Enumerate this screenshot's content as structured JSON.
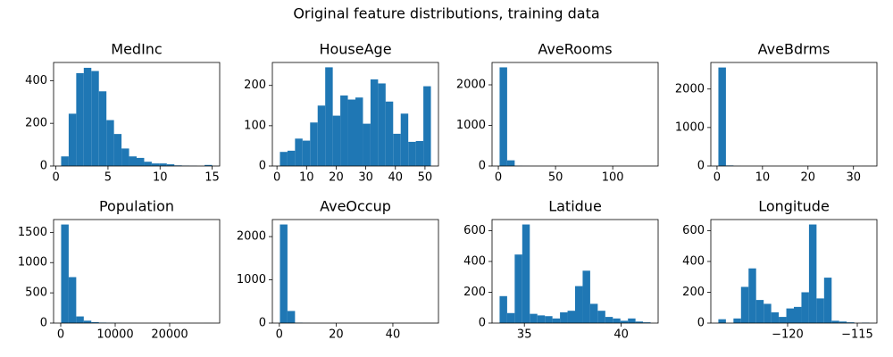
{
  "title": "Original feature distributions, training data",
  "chart_data": [
    {
      "type": "histogram",
      "title": "MedInc",
      "color": "#1f77b4",
      "bins": [
        0.5,
        1.225,
        1.95,
        2.675,
        3.4,
        4.125,
        4.85,
        5.575,
        6.3,
        7.025,
        7.75,
        8.475,
        9.2,
        9.925,
        10.65,
        11.375,
        12.1,
        12.825,
        13.55,
        14.275,
        15.0
      ],
      "values": [
        45,
        245,
        435,
        460,
        445,
        350,
        215,
        150,
        82,
        45,
        38,
        20,
        12,
        12,
        8,
        3,
        2,
        1,
        0,
        5
      ],
      "xlim": [
        -0.225,
        15.725
      ],
      "xticks": [
        0,
        5,
        10,
        15
      ],
      "ylim": [
        0,
        485
      ],
      "yticks": [
        0,
        200,
        400
      ]
    },
    {
      "type": "histogram",
      "title": "HouseAge",
      "color": "#1f77b4",
      "bins": [
        1,
        3.55,
        6.1,
        8.65,
        11.2,
        13.75,
        16.3,
        18.85,
        21.4,
        23.95,
        26.5,
        29.05,
        31.6,
        34.15,
        36.7,
        39.25,
        41.8,
        44.35,
        46.9,
        49.45,
        52
      ],
      "values": [
        35,
        38,
        68,
        63,
        108,
        150,
        245,
        125,
        175,
        165,
        170,
        105,
        215,
        205,
        160,
        80,
        130,
        60,
        62,
        198
      ],
      "xlim": [
        -1.55,
        54.55
      ],
      "xticks": [
        0,
        10,
        20,
        30,
        40,
        50
      ],
      "ylim": [
        0,
        257
      ],
      "yticks": [
        0,
        100,
        200
      ]
    },
    {
      "type": "histogram",
      "title": "AveRooms",
      "color": "#1f77b4",
      "bins": [
        1.1,
        7.7,
        14.3,
        20.9,
        27.5,
        34.1,
        40.7,
        47.3,
        53.9,
        60.5,
        67.1,
        73.7,
        80.3,
        86.9,
        93.5,
        100.1,
        106.7,
        113.3,
        119.9,
        126.5,
        133.1
      ],
      "values": [
        2430,
        140,
        5,
        2,
        0,
        0,
        0,
        0,
        0,
        0,
        0,
        0,
        0,
        0,
        0,
        0,
        0,
        0,
        0,
        1
      ],
      "xlim": [
        -5.5,
        139.7
      ],
      "xticks": [
        0,
        50,
        100
      ],
      "ylim": [
        0,
        2550
      ],
      "yticks": [
        0,
        1000,
        2000
      ]
    },
    {
      "type": "histogram",
      "title": "AveBdrms",
      "color": "#1f77b4",
      "bins": [
        0.3,
        1.96,
        3.62,
        5.28,
        6.94,
        8.6,
        10.26,
        11.92,
        13.58,
        15.24,
        16.9,
        18.56,
        20.22,
        21.88,
        23.54,
        25.2,
        26.86,
        28.52,
        30.18,
        31.84,
        33.5
      ],
      "values": [
        2560,
        15,
        2,
        0,
        0,
        0,
        0,
        0,
        0,
        0,
        0,
        0,
        0,
        0,
        0,
        0,
        0,
        0,
        0,
        1
      ],
      "xlim": [
        -1.36,
        35.16
      ],
      "xticks": [
        0,
        10,
        20,
        30
      ],
      "ylim": [
        0,
        2690
      ],
      "yticks": [
        0,
        1000,
        2000
      ]
    },
    {
      "type": "histogram",
      "title": "Population",
      "color": "#1f77b4",
      "bins": [
        75,
        1461,
        2847,
        4233,
        5619,
        7005,
        8391,
        9777,
        11163,
        12549,
        13935,
        15321,
        16707,
        18093,
        19479,
        20865,
        22251,
        23637,
        25023,
        26409,
        27795
      ],
      "values": [
        1630,
        760,
        110,
        40,
        15,
        8,
        5,
        3,
        1,
        1,
        0,
        0,
        0,
        0,
        0,
        0,
        0,
        0,
        0,
        1
      ],
      "xlim": [
        -1311,
        29181
      ],
      "xticks": [
        0,
        10000,
        20000
      ],
      "ylim": [
        0,
        1712
      ],
      "yticks": [
        0,
        500,
        1000,
        1500
      ]
    },
    {
      "type": "histogram",
      "title": "AveOccup",
      "color": "#1f77b4",
      "bins": [
        0.2,
        2.86,
        5.52,
        8.18,
        10.84,
        13.5,
        16.16,
        18.82,
        21.48,
        24.14,
        26.8,
        29.46,
        32.12,
        34.78,
        37.44,
        40.1,
        42.76,
        45.42,
        48.08,
        50.74,
        53.4
      ],
      "values": [
        2280,
        280,
        10,
        3,
        0,
        0,
        0,
        0,
        0,
        0,
        0,
        0,
        0,
        0,
        0,
        0,
        0,
        0,
        0,
        1
      ],
      "xlim": [
        -2.46,
        56.06
      ],
      "xticks": [
        0,
        20,
        40
      ],
      "ylim": [
        0,
        2394
      ],
      "yticks": [
        0,
        1000,
        2000
      ]
    },
    {
      "type": "histogram",
      "title": "Latidue",
      "color": "#1f77b4",
      "bins": [
        33.72,
        34.11,
        34.5,
        34.89,
        35.28,
        35.67,
        36.06,
        36.45,
        36.84,
        37.23,
        37.62,
        38.01,
        38.4,
        38.79,
        39.18,
        39.57,
        39.96,
        40.35,
        40.74,
        41.13,
        41.52
      ],
      "values": [
        175,
        65,
        445,
        640,
        60,
        50,
        45,
        30,
        70,
        80,
        240,
        340,
        125,
        80,
        40,
        30,
        15,
        30,
        10,
        5
      ],
      "xlim": [
        33.33,
        41.91
      ],
      "xticks": [
        35,
        40
      ],
      "ylim": [
        0,
        672
      ],
      "yticks": [
        0,
        200,
        400,
        600
      ]
    },
    {
      "type": "histogram",
      "title": "Longitude",
      "color": "#1f77b4",
      "bins": [
        -124.97,
        -124.428,
        -123.886,
        -123.344,
        -122.802,
        -122.26,
        -121.718,
        -121.176,
        -120.634,
        -120.092,
        -119.55,
        -119.008,
        -118.466,
        -117.924,
        -117.382,
        -116.84,
        -116.298,
        -115.756,
        -115.214,
        -114.672,
        -114.13
      ],
      "values": [
        25,
        0,
        30,
        235,
        355,
        150,
        125,
        70,
        40,
        95,
        105,
        200,
        640,
        160,
        295,
        15,
        10,
        5,
        0,
        3
      ],
      "xlim": [
        -125.51,
        -113.59
      ],
      "xticks": [
        {
          "value": -120,
          "label": "−120"
        },
        {
          "value": -115,
          "label": "−115"
        }
      ],
      "ylim": [
        0,
        672
      ],
      "yticks": [
        0,
        200,
        400,
        600
      ]
    }
  ]
}
